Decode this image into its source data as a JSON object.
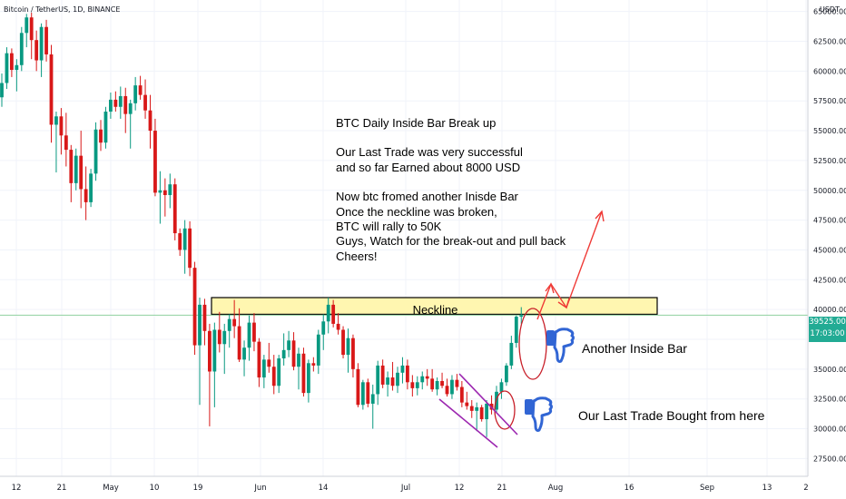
{
  "header": {
    "symbol": "Bitcoin / TetherUS, 1D, BINANCE",
    "currency": "USDT"
  },
  "annotations": {
    "note_lines": [
      "BTC Daily Inside Bar Break up",
      "",
      "Our Last Trade was very successful",
      "and so far Earned about 8000 USD",
      "",
      "Now btc fromed another Inisde Bar",
      "Once the neckline was broken,",
      "BTC will rally to 50K",
      "Guys, Watch for the break-out and pull back",
      "Cheers!"
    ],
    "neckline": "Neckline",
    "inside_bar": "Another Inside Bar",
    "last_trade": "Our Last Trade Bought from here",
    "thumb_icon": "thumbs-down-icon"
  },
  "price_tag": {
    "price": "39525.00",
    "countdown": "17:03:00"
  },
  "colors": {
    "up": "#089981",
    "down": "#d81818",
    "neckline_fill": "#fff6b0",
    "arrow": "#ef3a36",
    "ellipse": "#c8202a",
    "wedge": "#9c27b0",
    "icon": "#3165d4"
  },
  "chart_data": {
    "type": "candlestick",
    "xaxis_labels": [
      "12",
      "21",
      "May",
      "10",
      "19",
      "Jun",
      "14",
      "Jul",
      "12",
      "21",
      "Aug",
      "16",
      "Sep",
      "13",
      "2"
    ],
    "yaxis_ticks": [
      27500,
      30000,
      32500,
      35000,
      37500,
      40000,
      42500,
      45000,
      47500,
      50000,
      52500,
      55000,
      57500,
      60000,
      62500,
      65000
    ],
    "ylim": [
      26500,
      66500
    ],
    "current_price": 39525,
    "neckline_range": [
      39600,
      41000
    ],
    "ohlc": [
      [
        57800,
        59800,
        57000,
        59000
      ],
      [
        59000,
        62000,
        58500,
        61500
      ],
      [
        61500,
        61900,
        59500,
        60100
      ],
      [
        60100,
        61000,
        58300,
        60500
      ],
      [
        60500,
        63700,
        60000,
        63200
      ],
      [
        63200,
        64800,
        62000,
        64500
      ],
      [
        64500,
        64900,
        61000,
        62600
      ],
      [
        62600,
        63400,
        60000,
        60900
      ],
      [
        60900,
        64000,
        59500,
        63700
      ],
      [
        63700,
        64300,
        60800,
        61400
      ],
      [
        61400,
        62200,
        54000,
        55500
      ],
      [
        55500,
        56600,
        51500,
        56200
      ],
      [
        56200,
        56900,
        53000,
        54600
      ],
      [
        54600,
        56500,
        52000,
        53400
      ],
      [
        53400,
        53800,
        49000,
        50600
      ],
      [
        50600,
        53500,
        50000,
        52900
      ],
      [
        52900,
        55000,
        48500,
        50100
      ],
      [
        50100,
        52000,
        47500,
        49000
      ],
      [
        49000,
        51800,
        48600,
        51400
      ],
      [
        51400,
        55700,
        50800,
        55100
      ],
      [
        55100,
        55900,
        53300,
        54000
      ],
      [
        54000,
        57000,
        53500,
        56600
      ],
      [
        56600,
        58200,
        56000,
        57600
      ],
      [
        57600,
        58300,
        56600,
        57000
      ],
      [
        57000,
        58700,
        56000,
        57900
      ],
      [
        57900,
        58600,
        54800,
        56400
      ],
      [
        56400,
        57600,
        53500,
        57300
      ],
      [
        57300,
        59500,
        56700,
        58800
      ],
      [
        58800,
        59600,
        57600,
        58000
      ],
      [
        58000,
        59300,
        56000,
        56700
      ],
      [
        56700,
        58000,
        53500,
        55000
      ],
      [
        55000,
        56000,
        49500,
        49800
      ],
      [
        49800,
        51600,
        47200,
        50000
      ],
      [
        50000,
        51000,
        47800,
        49600
      ],
      [
        49600,
        51400,
        48500,
        50500
      ],
      [
        50500,
        51000,
        45800,
        46400
      ],
      [
        46400,
        46800,
        44500,
        45000
      ],
      [
        45000,
        47500,
        43000,
        46800
      ],
      [
        46800,
        47400,
        42800,
        43500
      ],
      [
        43500,
        44000,
        36200,
        37000
      ],
      [
        37000,
        41000,
        32000,
        40400
      ],
      [
        40400,
        40900,
        37000,
        38200
      ],
      [
        38200,
        38800,
        30200,
        34800
      ],
      [
        34800,
        38900,
        31800,
        38300
      ],
      [
        38300,
        39800,
        36400,
        37100
      ],
      [
        37100,
        38800,
        34600,
        38200
      ],
      [
        38200,
        39600,
        36800,
        39200
      ],
      [
        39200,
        40800,
        37600,
        38600
      ],
      [
        38600,
        40100,
        35600,
        35800
      ],
      [
        35800,
        37400,
        34400,
        36800
      ],
      [
        36800,
        39500,
        35700,
        38900
      ],
      [
        38900,
        39700,
        36500,
        37300
      ],
      [
        37300,
        37600,
        33500,
        34300
      ],
      [
        34300,
        36200,
        33400,
        35800
      ],
      [
        35800,
        37200,
        34700,
        35200
      ],
      [
        35200,
        36200,
        32900,
        33600
      ],
      [
        33600,
        36200,
        33000,
        35900
      ],
      [
        35900,
        38000,
        35300,
        36600
      ],
      [
        36600,
        38200,
        36000,
        37400
      ],
      [
        37400,
        38100,
        34900,
        35200
      ],
      [
        35200,
        36800,
        33300,
        36300
      ],
      [
        36300,
        36800,
        32700,
        33000
      ],
      [
        33000,
        35800,
        32200,
        35500
      ],
      [
        35500,
        36000,
        34800,
        35300
      ],
      [
        35300,
        38300,
        34600,
        37900
      ],
      [
        37900,
        39600,
        36600,
        39000
      ],
      [
        39000,
        41000,
        38000,
        40400
      ],
      [
        40400,
        40800,
        38500,
        38800
      ],
      [
        38800,
        39700,
        37900,
        38300
      ],
      [
        38300,
        38600,
        35900,
        36200
      ],
      [
        36200,
        38400,
        34700,
        37600
      ],
      [
        37600,
        37900,
        34300,
        35000
      ],
      [
        35000,
        35500,
        31800,
        32000
      ],
      [
        32000,
        34100,
        31600,
        33900
      ],
      [
        33900,
        34200,
        31800,
        32100
      ],
      [
        32100,
        33700,
        30000,
        32900
      ],
      [
        32900,
        35700,
        32000,
        35300
      ],
      [
        35300,
        35800,
        33400,
        33700
      ],
      [
        33700,
        34800,
        32700,
        34300
      ],
      [
        34300,
        35600,
        33200,
        33600
      ],
      [
        33600,
        35200,
        33000,
        34700
      ],
      [
        34700,
        36000,
        33800,
        35300
      ],
      [
        35300,
        35800,
        33300,
        33900
      ],
      [
        33900,
        34500,
        32700,
        33400
      ],
      [
        33400,
        34400,
        32800,
        33900
      ],
      [
        33900,
        34800,
        33300,
        34400
      ],
      [
        34400,
        35000,
        33600,
        34200
      ],
      [
        34200,
        35000,
        33100,
        33300
      ],
      [
        33300,
        34300,
        32800,
        34000
      ],
      [
        34000,
        34700,
        33400,
        33600
      ],
      [
        33600,
        34200,
        32700,
        32900
      ],
      [
        32900,
        34500,
        32500,
        34100
      ],
      [
        34100,
        34600,
        33200,
        33500
      ],
      [
        33500,
        34000,
        31800,
        32200
      ],
      [
        32200,
        33100,
        31600,
        31900
      ],
      [
        31900,
        32400,
        30900,
        31500
      ],
      [
        31500,
        32200,
        29800,
        31800
      ],
      [
        31800,
        32000,
        30600,
        30800
      ],
      [
        30800,
        32400,
        29300,
        32100
      ],
      [
        32100,
        32800,
        31200,
        31600
      ],
      [
        31600,
        33600,
        31300,
        33100
      ],
      [
        33100,
        34200,
        32500,
        33900
      ],
      [
        33900,
        35500,
        33600,
        35300
      ],
      [
        35300,
        37800,
        35000,
        37200
      ],
      [
        37200,
        39500,
        36800,
        39400
      ],
      [
        39400,
        40200,
        38800,
        39525
      ]
    ]
  }
}
